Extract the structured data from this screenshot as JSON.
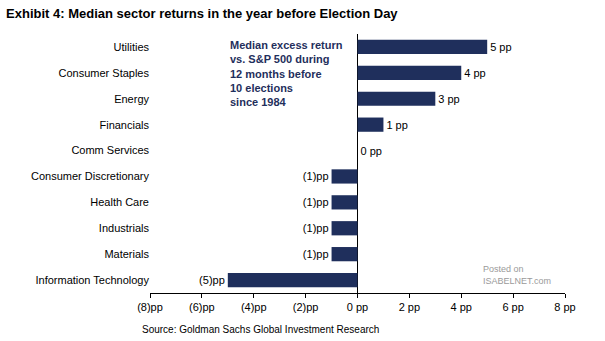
{
  "chart_data": {
    "type": "bar",
    "orientation": "horizontal",
    "title": "Exhibit 4: Median sector returns in the year before Election Day",
    "note": [
      "Median excess return",
      "vs. S&P 500 during",
      "12 months before",
      "10 elections",
      "since 1984"
    ],
    "watermark": [
      "Posted on",
      "ISABELNET.com"
    ],
    "source": "Source: Goldman Sachs Global Investment Research",
    "categories": [
      "Utilities",
      "Consumer Staples",
      "Energy",
      "Financials",
      "Comm Services",
      "Consumer Discretionary",
      "Health Care",
      "Industrials",
      "Materials",
      "Information Technology"
    ],
    "values": [
      5,
      4,
      3,
      1,
      0,
      -1,
      -1,
      -1,
      -1,
      -5
    ],
    "value_labels": [
      "5 pp",
      "4 pp",
      "3 pp",
      "1 pp",
      "0 pp",
      "(1)pp",
      "(1)pp",
      "(1)pp",
      "(1)pp",
      "(5)pp"
    ],
    "data_labels": true,
    "color": "#1f2f5c",
    "xlim": [
      -8,
      8
    ],
    "xticks": [
      {
        "value": -8,
        "label": "(8)pp"
      },
      {
        "value": -6,
        "label": "(6)pp"
      },
      {
        "value": -4,
        "label": "(4)pp"
      },
      {
        "value": -2,
        "label": "(2)pp"
      },
      {
        "value": 0,
        "label": "0 pp"
      },
      {
        "value": 2,
        "label": "2 pp"
      },
      {
        "value": 4,
        "label": "4 pp"
      },
      {
        "value": 6,
        "label": "6 pp"
      },
      {
        "value": 8,
        "label": "8 pp"
      }
    ],
    "grid": false
  }
}
